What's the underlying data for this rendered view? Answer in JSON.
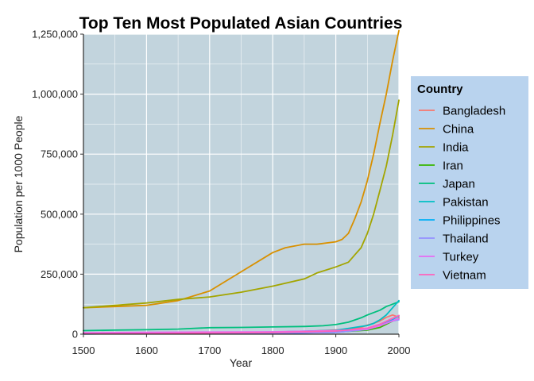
{
  "chart_data": {
    "type": "line",
    "title": "Top Ten Most Populated Asian Countries",
    "xlabel": "Year",
    "ylabel": "Population per 1000 People",
    "xlim": [
      1500,
      2000
    ],
    "ylim": [
      0,
      1250000
    ],
    "x_ticks": [
      "1500",
      "1600",
      "1700",
      "1800",
      "1900",
      "2000"
    ],
    "y_ticks": [
      "0",
      "250,000",
      "500,000",
      "750,000",
      "1,000,000",
      "1,250,000"
    ],
    "grid": true,
    "legend_position": "right",
    "legend_title": "Country",
    "colors": {
      "panel_bg": "#c2d4dd",
      "legend_bg": "#b9d3ee",
      "grid": "#ffffff"
    },
    "series": [
      {
        "name": "Bangladesh",
        "color": "#F8766D",
        "x": [
          1500,
          1600,
          1700,
          1800,
          1850,
          1900,
          1920,
          1940,
          1950,
          1960,
          1970,
          1980,
          1990,
          2000
        ],
        "y": [
          5000,
          6000,
          7000,
          9000,
          11000,
          18000,
          21000,
          28000,
          38000,
          45000,
          55000,
          70000,
          80000,
          70000
        ]
      },
      {
        "name": "China",
        "color": "#D89000",
        "x": [
          1500,
          1550,
          1600,
          1650,
          1700,
          1750,
          1800,
          1820,
          1850,
          1870,
          1880,
          1900,
          1910,
          1920,
          1930,
          1940,
          1950,
          1960,
          1970,
          1980,
          1990,
          2000
        ],
        "y": [
          110000,
          115000,
          120000,
          140000,
          180000,
          260000,
          340000,
          360000,
          375000,
          375000,
          378000,
          385000,
          395000,
          420000,
          480000,
          550000,
          640000,
          750000,
          880000,
          1000000,
          1140000,
          1265000
        ]
      },
      {
        "name": "India",
        "color": "#A3A500",
        "x": [
          1500,
          1550,
          1600,
          1650,
          1700,
          1750,
          1800,
          1850,
          1870,
          1900,
          1920,
          1930,
          1940,
          1950,
          1960,
          1970,
          1980,
          1990,
          2000
        ],
        "y": [
          110000,
          120000,
          130000,
          145000,
          155000,
          175000,
          200000,
          230000,
          255000,
          280000,
          300000,
          330000,
          360000,
          420000,
          500000,
          600000,
          700000,
          830000,
          975000
        ]
      },
      {
        "name": "Iran",
        "color": "#39B600",
        "x": [
          1500,
          1600,
          1700,
          1800,
          1900,
          1950,
          1970,
          1990,
          2000
        ],
        "y": [
          4000,
          5000,
          5000,
          6000,
          9000,
          17000,
          28000,
          55000,
          65000
        ]
      },
      {
        "name": "Japan",
        "color": "#00BF7D",
        "x": [
          1500,
          1550,
          1600,
          1650,
          1700,
          1750,
          1800,
          1850,
          1880,
          1900,
          1920,
          1940,
          1950,
          1960,
          1970,
          1980,
          1990,
          2000
        ],
        "y": [
          15000,
          17000,
          18500,
          21000,
          27000,
          28000,
          30000,
          32000,
          35000,
          40000,
          50000,
          68000,
          80000,
          90000,
          100000,
          115000,
          125000,
          135000
        ]
      },
      {
        "name": "Pakistan",
        "color": "#00BFC4",
        "x": [
          1500,
          1600,
          1700,
          1800,
          1900,
          1950,
          1960,
          1970,
          1980,
          1990,
          2000
        ],
        "y": [
          5000,
          6000,
          7000,
          9000,
          16000,
          36000,
          45000,
          60000,
          80000,
          110000,
          140000
        ]
      },
      {
        "name": "Philippines",
        "color": "#00B0F6",
        "x": [
          1500,
          1600,
          1700,
          1800,
          1900,
          1950,
          1970,
          1990,
          2000
        ],
        "y": [
          1000,
          1500,
          2000,
          3000,
          8000,
          20000,
          37000,
          62000,
          76000
        ]
      },
      {
        "name": "Thailand",
        "color": "#9590FF",
        "x": [
          1500,
          1600,
          1700,
          1800,
          1900,
          1950,
          1970,
          1990,
          2000
        ],
        "y": [
          2000,
          2500,
          3000,
          4000,
          7000,
          20000,
          36000,
          55000,
          60000
        ]
      },
      {
        "name": "Turkey",
        "color": "#E76BF3",
        "x": [
          1500,
          1600,
          1700,
          1800,
          1900,
          1950,
          1970,
          1990,
          2000
        ],
        "y": [
          6000,
          8000,
          9000,
          10000,
          15000,
          21000,
          35000,
          56000,
          65000
        ]
      },
      {
        "name": "Vietnam",
        "color": "#FF62BC",
        "x": [
          1500,
          1600,
          1700,
          1800,
          1900,
          1950,
          1970,
          1990,
          2000
        ],
        "y": [
          2000,
          3000,
          5000,
          7000,
          13000,
          25000,
          42000,
          66000,
          78000
        ]
      }
    ]
  }
}
